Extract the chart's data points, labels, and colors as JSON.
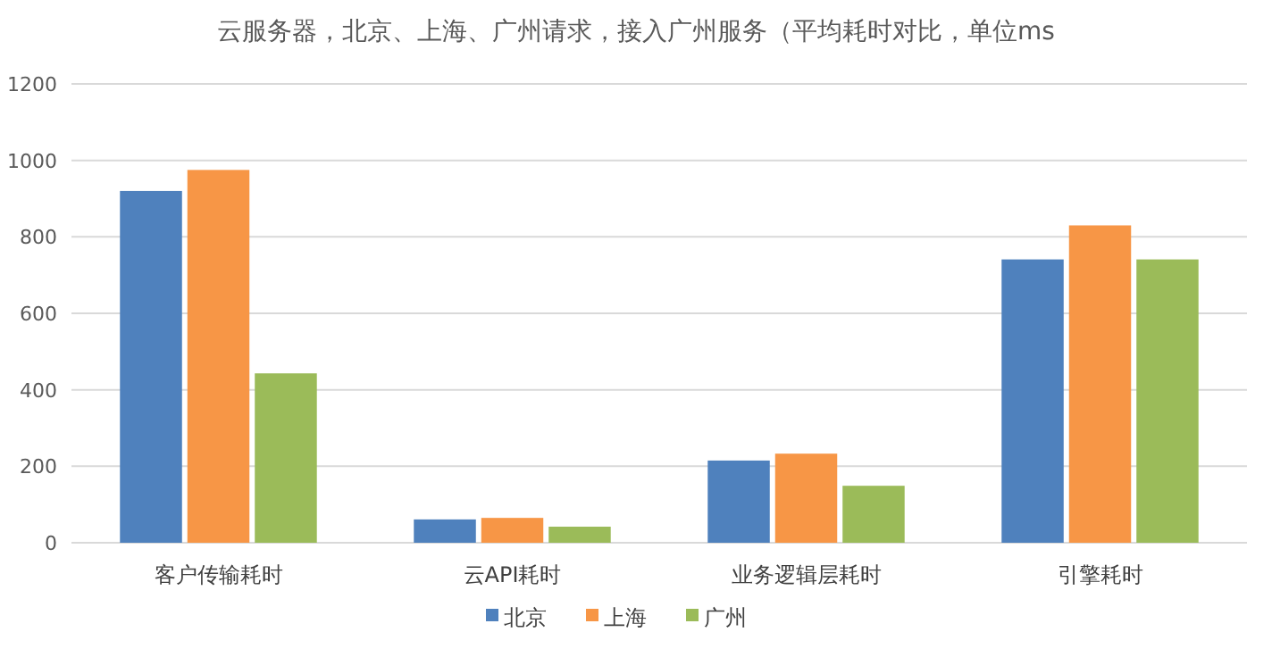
{
  "chart_data": {
    "type": "bar",
    "title": "云服务器，北京、上海、广州请求，接入广州服务（平均耗时对比，单位ms",
    "categories": [
      "客户传输耗时",
      "云API耗时",
      "业务逻辑层耗时",
      "引擎耗时"
    ],
    "series": [
      {
        "name": "北京",
        "color": "#4f81bd",
        "values": [
          920,
          61,
          215,
          741
        ]
      },
      {
        "name": "上海",
        "color": "#f79646",
        "values": [
          975,
          65,
          233,
          830
        ]
      },
      {
        "name": "广州",
        "color": "#9bbb59",
        "values": [
          443,
          42,
          149,
          741
        ]
      }
    ],
    "ylim": [
      0,
      1200
    ],
    "yticks": [
      0,
      200,
      400,
      600,
      800,
      1000,
      1200
    ],
    "grid": "y",
    "legend": "bottom"
  }
}
